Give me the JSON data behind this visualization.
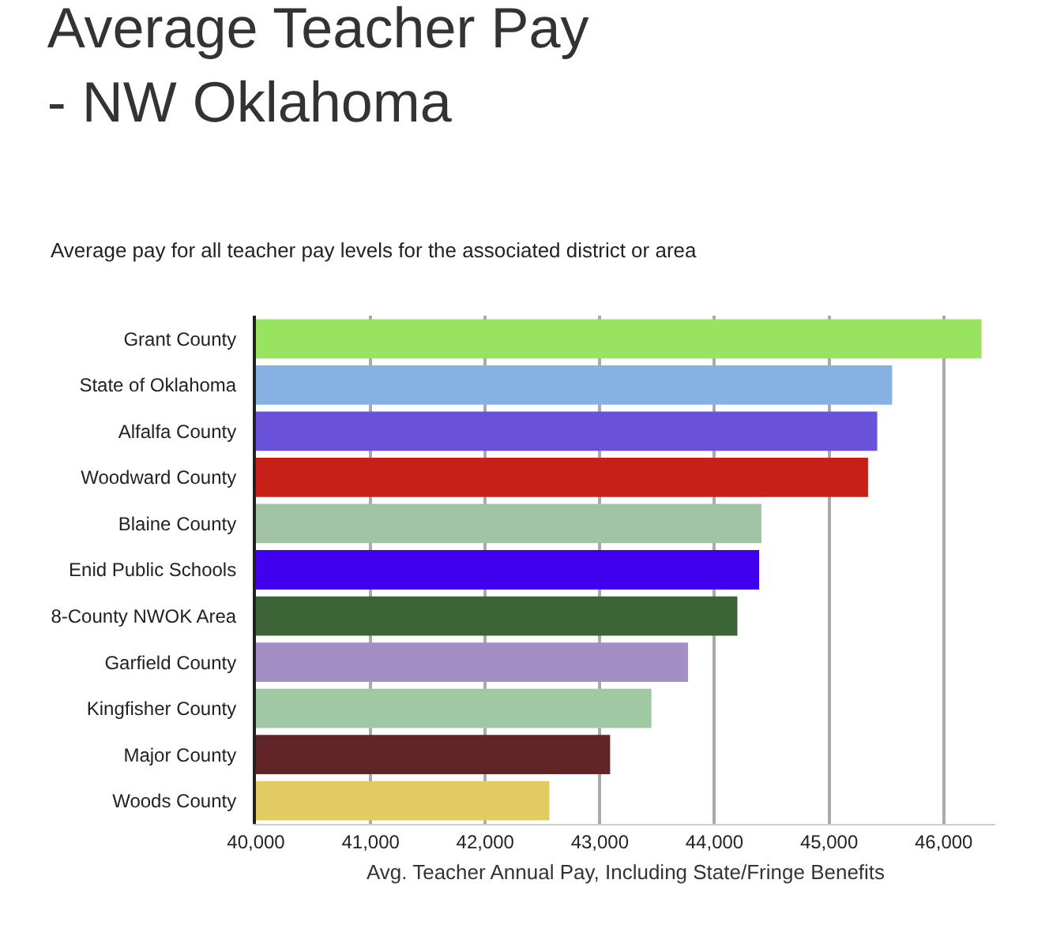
{
  "chart_data": {
    "type": "bar",
    "orientation": "horizontal",
    "title": "Average Teacher Pay\n- NW Oklahoma",
    "subtitle": "Average pay for all teacher pay levels for the associated district or area",
    "xlabel": "Avg. Teacher Annual Pay, Including State/Fringe Benefits",
    "categories": [
      "Grant County",
      "State of Oklahoma",
      "Alfalfa County",
      "Woodward County",
      "Blaine County",
      "Enid Public Schools",
      "8-County NWOK Area",
      "Garfield County",
      "Kingfisher County",
      "Major County",
      "Woods County"
    ],
    "values": [
      46330,
      45550,
      45420,
      45340,
      44410,
      44390,
      44200,
      43770,
      43450,
      43090,
      42560
    ],
    "colors": [
      "#98e35f",
      "#85b2e3",
      "#6a51da",
      "#c91f19",
      "#a1c5a4",
      "#4000ee",
      "#3b6336",
      "#a48ec6",
      "#a0c8a3",
      "#612528",
      "#e3cb63"
    ],
    "xlim": [
      40000,
      46450
    ],
    "xticks": [
      {
        "value": 40000,
        "label": "40,000"
      },
      {
        "value": 41000,
        "label": "41,000"
      },
      {
        "value": 42000,
        "label": "42,000"
      },
      {
        "value": 43000,
        "label": "43,000"
      },
      {
        "value": 44000,
        "label": "44,000"
      },
      {
        "value": 45000,
        "label": "45,000"
      },
      {
        "value": 46000,
        "label": "46,000"
      }
    ],
    "grid": "x",
    "legend": false
  }
}
